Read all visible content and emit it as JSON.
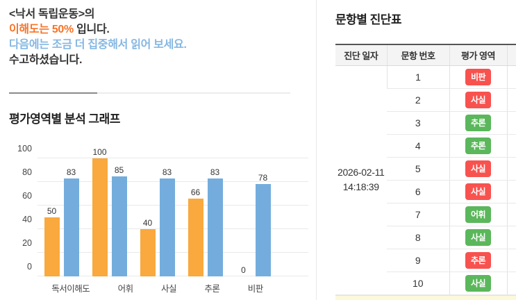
{
  "summary": {
    "line1": "<낙서 독립운동>의",
    "line2_highlight": "이해도는 50%",
    "line2_rest": " 입니다.",
    "line3": "다음에는 조금 더 집중해서 읽어 보세요.",
    "line4": "수고하셨습니다."
  },
  "chart_section": {
    "title": "평가영역별 분석 그래프"
  },
  "chart_data": {
    "type": "bar",
    "title": "평가영역별 분석 그래프",
    "categories": [
      "독서이해도",
      "어휘",
      "사실",
      "추론",
      "비판"
    ],
    "series": [
      {
        "name": "series-orange",
        "color": "#F9A93D",
        "values": [
          50,
          100,
          40,
          66,
          0
        ]
      },
      {
        "name": "series-blue",
        "color": "#74ADDD",
        "values": [
          83,
          85,
          83,
          83,
          78
        ]
      }
    ],
    "ylim": [
      0,
      100
    ],
    "yticks": [
      0,
      20,
      40,
      60,
      80,
      100
    ],
    "grid": true,
    "legend": "none",
    "value_labels": true
  },
  "table_section": {
    "title": "문항별 진단표",
    "headers": [
      "진단 일자",
      "문항 번호",
      "평가 영역",
      ""
    ],
    "date": "2026-02-11",
    "time": "14:18:39",
    "rows": [
      {
        "no": "1",
        "area": "비판",
        "status": "red"
      },
      {
        "no": "2",
        "area": "사실",
        "status": "red"
      },
      {
        "no": "3",
        "area": "추론",
        "status": "green"
      },
      {
        "no": "4",
        "area": "추론",
        "status": "green"
      },
      {
        "no": "5",
        "area": "사실",
        "status": "red"
      },
      {
        "no": "6",
        "area": "사실",
        "status": "red"
      },
      {
        "no": "7",
        "area": "어휘",
        "status": "green"
      },
      {
        "no": "8",
        "area": "사실",
        "status": "green"
      },
      {
        "no": "9",
        "area": "추론",
        "status": "red"
      },
      {
        "no": "10",
        "area": "사실",
        "status": "green"
      }
    ]
  },
  "colors": {
    "highlight_orange": "#f87326",
    "highlight_blue": "#85b7e2",
    "bar_orange": "#F9A93D",
    "bar_blue": "#74ADDD",
    "badge_red": "#f8524f",
    "badge_green": "#5bb75b",
    "footer_yellow": "#fcf8da"
  }
}
